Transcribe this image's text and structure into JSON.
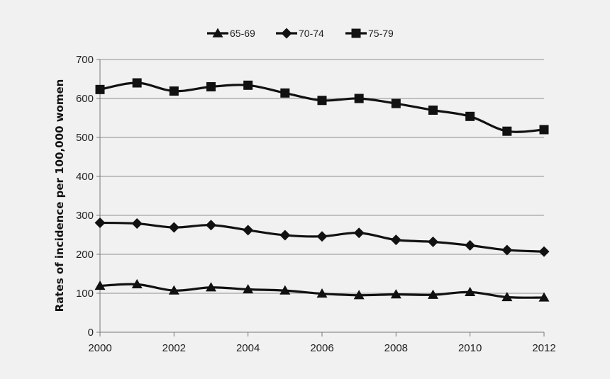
{
  "chart_data": {
    "type": "line",
    "title": "",
    "xlabel": "",
    "ylabel": "Rates of incidence per 100,000 women",
    "xlim": [
      2000,
      2012
    ],
    "ylim": [
      0,
      700
    ],
    "xticks": [
      "2000",
      "2002",
      "2004",
      "2006",
      "2008",
      "2010",
      "2012"
    ],
    "yticks": [
      "0",
      "100",
      "200",
      "300",
      "400",
      "500",
      "600",
      "700"
    ],
    "grid": "horizontal",
    "legend_position": "top-center",
    "x": [
      2000,
      2001,
      2002,
      2003,
      2004,
      2005,
      2006,
      2007,
      2008,
      2009,
      2010,
      2011,
      2012
    ],
    "series": [
      {
        "name": "65-69",
        "marker": "triangle",
        "color": "#111111",
        "values": [
          119,
          123,
          107,
          115,
          110,
          107,
          99,
          95,
          97,
          96,
          103,
          90,
          89
        ]
      },
      {
        "name": "70-74",
        "marker": "diamond",
        "color": "#111111",
        "values": [
          281,
          279,
          269,
          275,
          262,
          249,
          246,
          255,
          237,
          232,
          223,
          211,
          207
        ]
      },
      {
        "name": "75-79",
        "marker": "square",
        "color": "#111111",
        "values": [
          623,
          640,
          619,
          630,
          634,
          614,
          595,
          600,
          587,
          570,
          554,
          516,
          520
        ]
      }
    ]
  }
}
